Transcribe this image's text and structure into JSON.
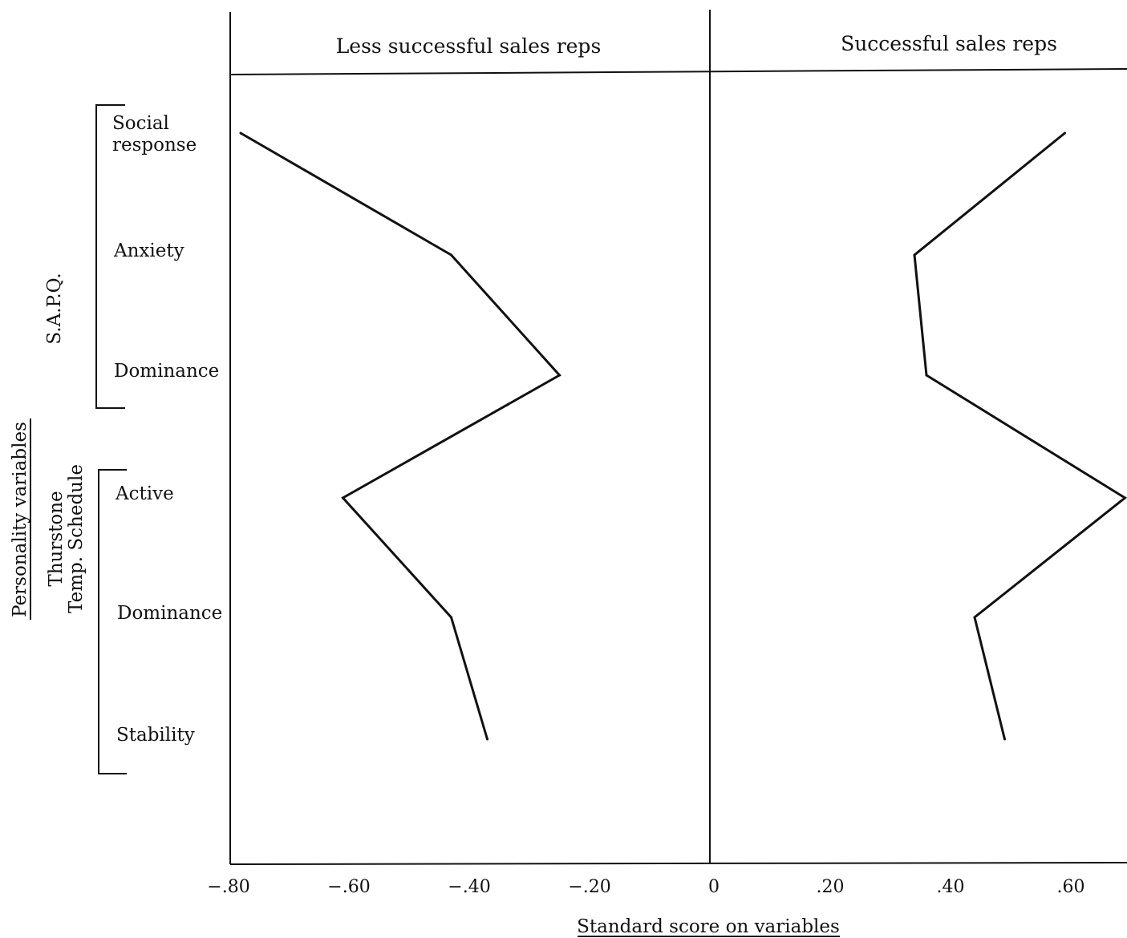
{
  "chart_data": {
    "type": "line",
    "orientation": "horizontal-profile",
    "panels": [
      "Less successful sales reps",
      "Successful sales reps"
    ],
    "xlabel": "Standard score on variables",
    "ylabel": "Personality variables",
    "xlim": [
      -0.8,
      0.65
    ],
    "xticks": [
      {
        "value": -0.8,
        "label": "−.80"
      },
      {
        "value": -0.6,
        "label": "−.60"
      },
      {
        "value": -0.4,
        "label": "−.40"
      },
      {
        "value": -0.2,
        "label": "−.20"
      },
      {
        "value": 0,
        "label": "0"
      },
      {
        "value": 0.2,
        "label": ".20"
      },
      {
        "value": 0.4,
        "label": ".40"
      },
      {
        "value": 0.6,
        "label": ".60"
      }
    ],
    "groups": [
      {
        "name": "S.A.P.Q.",
        "variables": [
          "Social response",
          "Anxiety",
          "Dominance"
        ]
      },
      {
        "name": "Thurstone Temp. Schedule",
        "name_lines": [
          "Thurstone",
          "Temp. Schedule"
        ],
        "variables": [
          "Active",
          "Dominance",
          "Stability"
        ]
      }
    ],
    "variable_labels": [
      [
        "Social",
        "response"
      ],
      [
        "Anxiety"
      ],
      [
        "Dominance"
      ],
      [
        "Active"
      ],
      [
        "Dominance"
      ],
      [
        "Stability"
      ]
    ],
    "series": [
      {
        "name": "Less successful sales reps",
        "values": [
          -0.78,
          -0.43,
          -0.25,
          -0.61,
          -0.43,
          -0.37
        ]
      },
      {
        "name": "Successful sales reps",
        "values": [
          0.59,
          0.34,
          0.36,
          0.69,
          0.44,
          0.49
        ]
      }
    ],
    "grid": false,
    "legend": "none"
  }
}
